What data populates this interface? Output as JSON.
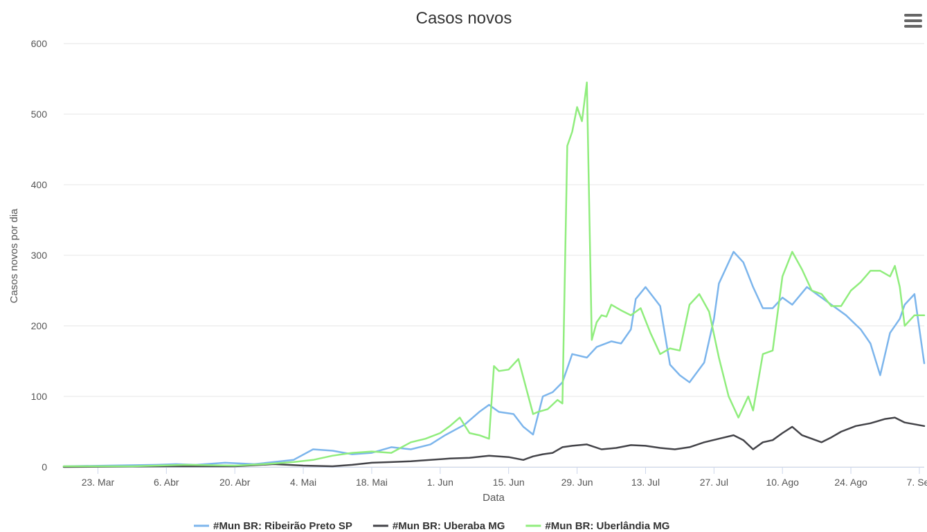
{
  "chart_data": {
    "type": "line",
    "title": "Casos novos",
    "xlabel": "Data",
    "ylabel": "Casos novos por dia",
    "ylim": [
      0,
      600
    ],
    "yticks": [
      0,
      100,
      200,
      300,
      400,
      500,
      600
    ],
    "xlim": [
      "2020-03-16",
      "2020-09-08"
    ],
    "xtick_labels": [
      "23. Mar",
      "6. Abr",
      "20. Abr",
      "4. Mai",
      "18. Mai",
      "1. Jun",
      "15. Jun",
      "29. Jun",
      "13. Jul",
      "27. Jul",
      "10. Ago",
      "24. Ago",
      "7. Set"
    ],
    "xtick_dates": [
      "2020-03-23",
      "2020-04-06",
      "2020-04-20",
      "2020-05-04",
      "2020-05-18",
      "2020-06-01",
      "2020-06-15",
      "2020-06-29",
      "2020-07-13",
      "2020-07-27",
      "2020-08-10",
      "2020-08-24",
      "2020-09-07"
    ],
    "grid": "horizontal",
    "legend_position": "bottom-center",
    "series": [
      {
        "name": "#Mun BR: Ribeirão Preto SP",
        "color": "#7cb5ec",
        "x": [
          "2020-03-16",
          "2020-04-04",
          "2020-04-08",
          "2020-04-12",
          "2020-04-18",
          "2020-04-24",
          "2020-05-02",
          "2020-05-06",
          "2020-05-08",
          "2020-05-10",
          "2020-05-14",
          "2020-05-18",
          "2020-05-22",
          "2020-05-26",
          "2020-05-30",
          "2020-06-02",
          "2020-06-06",
          "2020-06-09",
          "2020-06-11",
          "2020-06-13",
          "2020-06-16",
          "2020-06-18",
          "2020-06-20",
          "2020-06-22",
          "2020-06-24",
          "2020-06-26",
          "2020-06-28",
          "2020-07-01",
          "2020-07-03",
          "2020-07-06",
          "2020-07-08",
          "2020-07-10",
          "2020-07-11",
          "2020-07-13",
          "2020-07-16",
          "2020-07-18",
          "2020-07-20",
          "2020-07-22",
          "2020-07-25",
          "2020-07-27",
          "2020-07-28",
          "2020-07-31",
          "2020-08-02",
          "2020-08-04",
          "2020-08-06",
          "2020-08-08",
          "2020-08-10",
          "2020-08-12",
          "2020-08-15",
          "2020-08-18",
          "2020-08-20",
          "2020-08-23",
          "2020-08-26",
          "2020-08-28",
          "2020-08-30",
          "2020-09-01",
          "2020-09-03",
          "2020-09-04",
          "2020-09-06",
          "2020-09-08"
        ],
        "values": [
          1,
          3,
          4,
          3,
          6,
          4,
          10,
          25,
          24,
          23,
          18,
          20,
          28,
          25,
          32,
          45,
          60,
          78,
          88,
          78,
          75,
          57,
          46,
          100,
          106,
          120,
          160,
          155,
          170,
          178,
          175,
          195,
          238,
          255,
          228,
          145,
          130,
          120,
          148,
          210,
          260,
          305,
          290,
          255,
          225,
          225,
          240,
          230,
          255,
          240,
          230,
          215,
          195,
          175,
          130,
          190,
          210,
          230,
          245,
          147
        ]
      },
      {
        "name": "#Mun BR: Uberaba MG",
        "color": "#434348",
        "x": [
          "2020-03-16",
          "2020-04-06",
          "2020-04-20",
          "2020-04-28",
          "2020-05-04",
          "2020-05-10",
          "2020-05-14",
          "2020-05-18",
          "2020-05-22",
          "2020-05-26",
          "2020-05-30",
          "2020-06-03",
          "2020-06-07",
          "2020-06-11",
          "2020-06-15",
          "2020-06-18",
          "2020-06-20",
          "2020-06-22",
          "2020-06-24",
          "2020-06-26",
          "2020-06-28",
          "2020-07-01",
          "2020-07-04",
          "2020-07-07",
          "2020-07-10",
          "2020-07-13",
          "2020-07-16",
          "2020-07-19",
          "2020-07-22",
          "2020-07-25",
          "2020-07-28",
          "2020-07-31",
          "2020-08-02",
          "2020-08-04",
          "2020-08-06",
          "2020-08-08",
          "2020-08-10",
          "2020-08-12",
          "2020-08-14",
          "2020-08-16",
          "2020-08-18",
          "2020-08-20",
          "2020-08-22",
          "2020-08-25",
          "2020-08-28",
          "2020-08-31",
          "2020-09-02",
          "2020-09-04",
          "2020-09-08"
        ],
        "values": [
          0,
          1,
          1,
          4,
          2,
          1,
          3,
          6,
          7,
          8,
          10,
          12,
          13,
          16,
          14,
          10,
          15,
          18,
          20,
          28,
          30,
          32,
          25,
          27,
          31,
          30,
          27,
          25,
          28,
          35,
          40,
          45,
          38,
          25,
          35,
          38,
          48,
          57,
          45,
          40,
          35,
          42,
          50,
          58,
          62,
          68,
          70,
          63,
          58
        ]
      },
      {
        "name": "#Mun BR: Uberlândia MG",
        "color": "#90ed7d",
        "x": [
          "2020-03-16",
          "2020-03-30",
          "2020-04-10",
          "2020-04-20",
          "2020-04-26",
          "2020-05-02",
          "2020-05-06",
          "2020-05-10",
          "2020-05-14",
          "2020-05-18",
          "2020-05-22",
          "2020-05-26",
          "2020-05-29",
          "2020-06-01",
          "2020-06-03",
          "2020-06-05",
          "2020-06-07",
          "2020-06-09",
          "2020-06-11",
          "2020-06-12",
          "2020-06-13",
          "2020-06-15",
          "2020-06-17",
          "2020-06-20",
          "2020-06-21",
          "2020-06-23",
          "2020-06-25",
          "2020-06-26",
          "2020-06-27",
          "2020-06-28",
          "2020-06-29",
          "2020-06-30",
          "2020-07-01",
          "2020-07-02",
          "2020-07-03",
          "2020-07-04",
          "2020-07-05",
          "2020-07-06",
          "2020-07-08",
          "2020-07-10",
          "2020-07-12",
          "2020-07-14",
          "2020-07-16",
          "2020-07-18",
          "2020-07-20",
          "2020-07-22",
          "2020-07-24",
          "2020-07-26",
          "2020-07-28",
          "2020-07-30",
          "2020-08-01",
          "2020-08-03",
          "2020-08-04",
          "2020-08-06",
          "2020-08-08",
          "2020-08-10",
          "2020-08-12",
          "2020-08-14",
          "2020-08-16",
          "2020-08-18",
          "2020-08-20",
          "2020-08-22",
          "2020-08-24",
          "2020-08-26",
          "2020-08-28",
          "2020-08-30",
          "2020-09-01",
          "2020-09-02",
          "2020-09-03",
          "2020-09-04",
          "2020-09-06",
          "2020-09-08"
        ],
        "values": [
          1,
          1,
          3,
          2,
          4,
          7,
          10,
          16,
          20,
          22,
          20,
          35,
          40,
          48,
          58,
          70,
          48,
          45,
          40,
          143,
          136,
          138,
          153,
          75,
          78,
          82,
          95,
          90,
          455,
          475,
          510,
          490,
          545,
          180,
          205,
          215,
          213,
          230,
          222,
          215,
          225,
          190,
          160,
          168,
          165,
          230,
          245,
          220,
          155,
          100,
          70,
          100,
          80,
          160,
          165,
          270,
          305,
          280,
          250,
          245,
          228,
          228,
          250,
          262,
          278,
          278,
          270,
          285,
          255,
          200,
          215,
          215
        ]
      }
    ]
  },
  "menu": {
    "icon": "hamburger-menu-icon"
  }
}
